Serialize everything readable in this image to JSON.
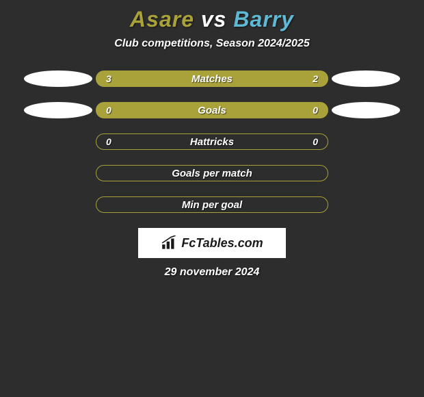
{
  "background_color": "#2d2d2d",
  "title": {
    "player1": "Asare",
    "vs": "vs",
    "player2": "Barry",
    "player1_color": "#a9a13a",
    "vs_color": "#ffffff",
    "player2_color": "#5fb9d4"
  },
  "subtitle": "Club competitions, Season 2024/2025",
  "rows": [
    {
      "label": "Matches",
      "left": "3",
      "right": "2",
      "fill": "#a9a13a",
      "border": "#a9a13a",
      "show_left_ellipse": true,
      "show_right_ellipse": true
    },
    {
      "label": "Goals",
      "left": "0",
      "right": "0",
      "fill": "#a9a13a",
      "border": "#a9a13a",
      "show_left_ellipse": true,
      "show_right_ellipse": true
    },
    {
      "label": "Hattricks",
      "left": "0",
      "right": "0",
      "fill": "transparent",
      "border": "#a9a13a",
      "show_left_ellipse": false,
      "show_right_ellipse": false
    },
    {
      "label": "Goals per match",
      "left": "",
      "right": "",
      "fill": "transparent",
      "border": "#a9a13a",
      "show_left_ellipse": false,
      "show_right_ellipse": false
    },
    {
      "label": "Min per goal",
      "left": "",
      "right": "",
      "fill": "transparent",
      "border": "#a9a13a",
      "show_left_ellipse": false,
      "show_right_ellipse": false
    }
  ],
  "ellipse_color": "#ffffff",
  "logo": {
    "text": "FcTables.com",
    "icon_name": "bar-chart-icon"
  },
  "date": "29 november 2024"
}
